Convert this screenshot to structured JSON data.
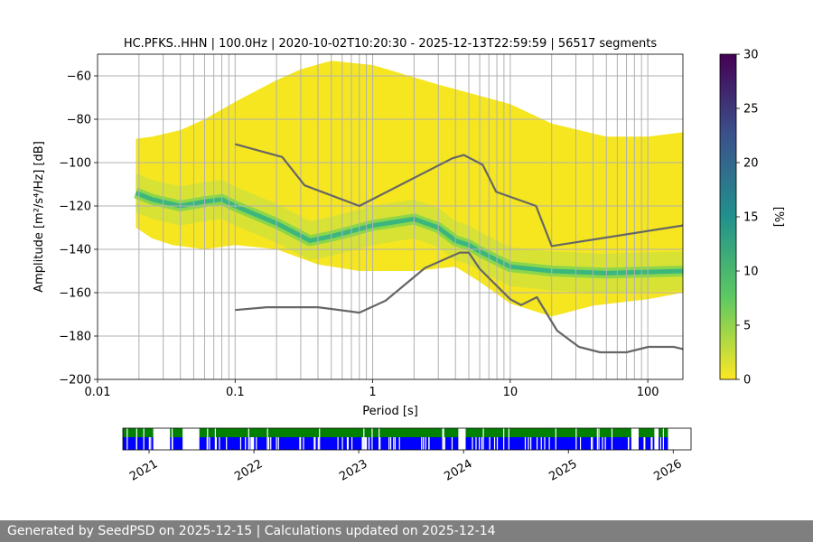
{
  "chart_data": {
    "type": "heatmap",
    "title": "HC.PFKS..HHN | 100.0Hz | 2020-10-02T10:20:30 - 2025-12-13T22:59:59 | 56517 segments",
    "xlabel": "Period [s]",
    "ylabel": "Amplitude [m²/s⁴/Hz] [dB]",
    "xscale": "log",
    "xlim": [
      0.01,
      180
    ],
    "ylim": [
      -200,
      -50
    ],
    "x_ticks": [
      {
        "value": 0.01,
        "label": "0.01"
      },
      {
        "value": 0.1,
        "label": "0.1"
      },
      {
        "value": 1,
        "label": "1"
      },
      {
        "value": 10,
        "label": "10"
      },
      {
        "value": 100,
        "label": "100"
      }
    ],
    "y_ticks": [
      -60,
      -80,
      -100,
      -120,
      -140,
      -160,
      -180,
      -200
    ],
    "y_tick_labels": [
      "−60",
      "−80",
      "−100",
      "−120",
      "−140",
      "−160",
      "−180",
      "−200"
    ],
    "vertical_grid_periods": [
      0.02,
      0.03,
      0.04,
      0.05,
      0.06,
      0.07,
      0.08,
      0.09,
      0.1,
      0.2,
      0.3,
      0.4,
      0.5,
      0.6,
      0.7,
      0.8,
      0.9,
      1,
      2,
      3,
      4,
      5,
      6,
      7,
      8,
      9,
      10,
      20,
      30,
      40,
      50,
      60,
      70,
      80,
      90,
      100
    ],
    "high_noise_model": [
      [
        0.1,
        -91.5
      ],
      [
        0.22,
        -97.4
      ],
      [
        0.32,
        -110.5
      ],
      [
        0.8,
        -120
      ],
      [
        3.8,
        -98
      ],
      [
        4.6,
        -96.5
      ],
      [
        6.3,
        -101
      ],
      [
        7.9,
        -113.5
      ],
      [
        15.4,
        -120
      ],
      [
        20,
        -138.5
      ],
      [
        180,
        -129
      ]
    ],
    "low_noise_model": [
      [
        0.1,
        -168
      ],
      [
        0.17,
        -166.7
      ],
      [
        0.4,
        -166.7
      ],
      [
        0.8,
        -169.2
      ],
      [
        1.24,
        -163.7
      ],
      [
        2.4,
        -148.6
      ],
      [
        4.3,
        -141.5
      ],
      [
        5.0,
        -141.5
      ],
      [
        6.0,
        -149
      ],
      [
        10,
        -163
      ],
      [
        12,
        -165.7
      ],
      [
        15.6,
        -162.1
      ],
      [
        21.9,
        -177.5
      ],
      [
        31.6,
        -185
      ],
      [
        45,
        -187.5
      ],
      [
        70,
        -187.5
      ],
      [
        101,
        -185
      ],
      [
        154,
        -185
      ],
      [
        180,
        -186
      ]
    ],
    "mode_curve": [
      [
        0.019,
        -114
      ],
      [
        0.025,
        -117
      ],
      [
        0.04,
        -120
      ],
      [
        0.06,
        -118
      ],
      [
        0.08,
        -117
      ],
      [
        0.1,
        -120
      ],
      [
        0.2,
        -128
      ],
      [
        0.35,
        -136
      ],
      [
        0.5,
        -134
      ],
      [
        1,
        -129
      ],
      [
        2,
        -126
      ],
      [
        3,
        -130
      ],
      [
        4,
        -136
      ],
      [
        5,
        -138
      ],
      [
        6,
        -141
      ],
      [
        10,
        -148
      ],
      [
        20,
        -150
      ],
      [
        50,
        -151
      ],
      [
        180,
        -150
      ]
    ],
    "envelope_upper": [
      [
        0.019,
        -89
      ],
      [
        0.025,
        -88
      ],
      [
        0.04,
        -85
      ],
      [
        0.06,
        -80
      ],
      [
        0.1,
        -72
      ],
      [
        0.2,
        -62
      ],
      [
        0.3,
        -57
      ],
      [
        0.5,
        -53
      ],
      [
        1,
        -55
      ],
      [
        3,
        -64
      ],
      [
        10,
        -73
      ],
      [
        20,
        -82
      ],
      [
        50,
        -88
      ],
      [
        100,
        -88
      ],
      [
        180,
        -86
      ]
    ],
    "envelope_lower": [
      [
        0.019,
        -130
      ],
      [
        0.025,
        -135
      ],
      [
        0.035,
        -138
      ],
      [
        0.06,
        -140
      ],
      [
        0.1,
        -138
      ],
      [
        0.2,
        -140
      ],
      [
        0.4,
        -147
      ],
      [
        0.8,
        -150
      ],
      [
        2,
        -150
      ],
      [
        4,
        -148
      ],
      [
        6,
        -155
      ],
      [
        10,
        -165
      ],
      [
        20,
        -171
      ],
      [
        40,
        -166
      ],
      [
        100,
        -163
      ],
      [
        180,
        -160
      ]
    ],
    "colorbar": {
      "label": "[%]",
      "min": 0,
      "max": 30,
      "ticks": [
        0,
        5,
        10,
        15,
        20,
        25,
        30
      ]
    },
    "timeline": {
      "year_labels": [
        "2021",
        "2022",
        "2023",
        "2024",
        "2025",
        "2026"
      ],
      "year_values": [
        2021,
        2022,
        2023,
        2024,
        2025,
        2026
      ],
      "range": [
        2020.75,
        2026.17
      ],
      "data_start": 2020.75,
      "data_end": 2025.95,
      "gaps": [
        [
          2021.04,
          2021.2
        ],
        [
          2021.32,
          2021.48
        ],
        [
          2023.95,
          2024.02
        ],
        [
          2025.6,
          2025.67
        ],
        [
          2025.82,
          2025.86
        ]
      ],
      "colors": {
        "top": "#008000",
        "bottom": "#0000ff"
      }
    }
  },
  "footer": {
    "text": "Generated by SeedPSD on 2025-12-15 | Calculations updated on 2025-12-14"
  }
}
